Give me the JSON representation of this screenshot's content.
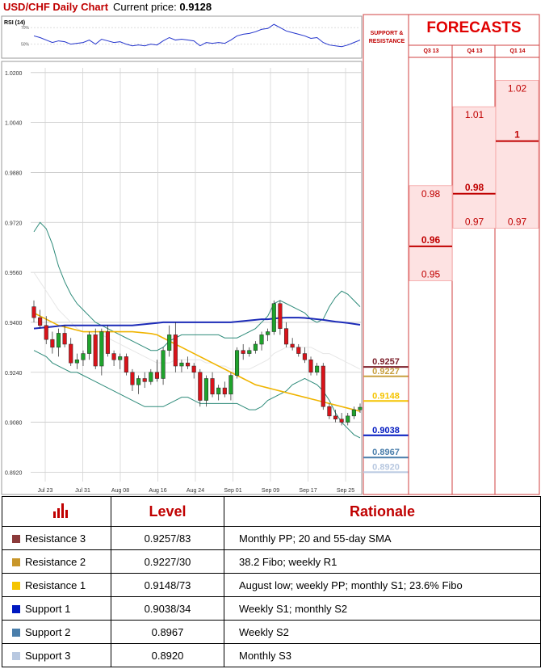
{
  "header": {
    "title": "USD/CHF Daily Chart",
    "current_label": "Current price:",
    "current_value": "0.9128"
  },
  "rsi": {
    "label": "RSI (14)",
    "levels": [
      "70%",
      "50%"
    ]
  },
  "forecast_panel": {
    "title": "FORECASTS",
    "sr_header": "SUPPORT & RESISTANCE",
    "quarters": [
      "Q3 13",
      "Q4 13",
      "Q1 14"
    ]
  },
  "chart_data": {
    "type": "candlestick",
    "y_ticks": [
      "1.0200",
      "1.0040",
      "0.9880",
      "0.9720",
      "0.9560",
      "0.9400",
      "0.9240",
      "0.9080",
      "0.8920"
    ],
    "ylim": [
      0.889,
      1.0215
    ],
    "x_labels": [
      "Jul 23",
      "Jul 31",
      "Aug 08",
      "Aug 16",
      "Aug 24",
      "Sep 01",
      "Sep 09",
      "Sep 17",
      "Sep 25"
    ],
    "candles": [
      [
        0.945,
        0.947,
        0.94,
        0.9415
      ],
      [
        0.9415,
        0.944,
        0.938,
        0.939
      ],
      [
        0.939,
        0.942,
        0.933,
        0.9345
      ],
      [
        0.9345,
        0.937,
        0.93,
        0.932
      ],
      [
        0.932,
        0.938,
        0.929,
        0.9365
      ],
      [
        0.9365,
        0.939,
        0.932,
        0.933
      ],
      [
        0.933,
        0.935,
        0.926,
        0.927
      ],
      [
        0.927,
        0.93,
        0.925,
        0.928
      ],
      [
        0.928,
        0.931,
        0.926,
        0.93
      ],
      [
        0.93,
        0.937,
        0.928,
        0.936
      ],
      [
        0.936,
        0.938,
        0.925,
        0.926
      ],
      [
        0.926,
        0.938,
        0.923,
        0.937
      ],
      [
        0.937,
        0.939,
        0.929,
        0.93
      ],
      [
        0.93,
        0.931,
        0.926,
        0.928
      ],
      [
        0.928,
        0.93,
        0.925,
        0.929
      ],
      [
        0.929,
        0.93,
        0.923,
        0.924
      ],
      [
        0.924,
        0.925,
        0.918,
        0.92
      ],
      [
        0.92,
        0.923,
        0.917,
        0.922
      ],
      [
        0.922,
        0.924,
        0.919,
        0.921
      ],
      [
        0.921,
        0.925,
        0.92,
        0.924
      ],
      [
        0.924,
        0.928,
        0.921,
        0.922
      ],
      [
        0.922,
        0.932,
        0.92,
        0.931
      ],
      [
        0.931,
        0.939,
        0.929,
        0.936
      ],
      [
        0.936,
        0.94,
        0.924,
        0.926
      ],
      [
        0.926,
        0.928,
        0.924,
        0.927
      ],
      [
        0.927,
        0.929,
        0.925,
        0.926
      ],
      [
        0.926,
        0.927,
        0.922,
        0.924
      ],
      [
        0.924,
        0.925,
        0.913,
        0.915
      ],
      [
        0.915,
        0.923,
        0.913,
        0.922
      ],
      [
        0.922,
        0.924,
        0.916,
        0.917
      ],
      [
        0.917,
        0.92,
        0.915,
        0.919
      ],
      [
        0.919,
        0.921,
        0.916,
        0.917
      ],
      [
        0.917,
        0.924,
        0.915,
        0.923
      ],
      [
        0.923,
        0.932,
        0.922,
        0.931
      ],
      [
        0.931,
        0.933,
        0.928,
        0.93
      ],
      [
        0.93,
        0.932,
        0.929,
        0.931
      ],
      [
        0.931,
        0.934,
        0.93,
        0.933
      ],
      [
        0.933,
        0.937,
        0.931,
        0.936
      ],
      [
        0.936,
        0.938,
        0.934,
        0.937
      ],
      [
        0.937,
        0.947,
        0.936,
        0.946
      ],
      [
        0.946,
        0.947,
        0.936,
        0.938
      ],
      [
        0.938,
        0.94,
        0.932,
        0.933
      ],
      [
        0.933,
        0.935,
        0.931,
        0.932
      ],
      [
        0.932,
        0.933,
        0.929,
        0.93
      ],
      [
        0.93,
        0.932,
        0.927,
        0.928
      ],
      [
        0.928,
        0.929,
        0.923,
        0.924
      ],
      [
        0.924,
        0.927,
        0.923,
        0.926
      ],
      [
        0.926,
        0.927,
        0.912,
        0.913
      ],
      [
        0.913,
        0.914,
        0.909,
        0.91
      ],
      [
        0.91,
        0.912,
        0.908,
        0.909
      ],
      [
        0.909,
        0.911,
        0.907,
        0.908
      ],
      [
        0.908,
        0.911,
        0.907,
        0.91
      ],
      [
        0.91,
        0.913,
        0.909,
        0.912
      ],
      [
        0.912,
        0.914,
        0.911,
        0.9128
      ]
    ],
    "bands_upper": [
      0.969,
      0.972,
      0.97,
      0.965,
      0.958,
      0.953,
      0.949,
      0.946,
      0.944,
      0.942,
      0.94,
      0.939,
      0.938,
      0.937,
      0.936,
      0.935,
      0.934,
      0.933,
      0.932,
      0.931,
      0.931,
      0.932,
      0.934,
      0.935,
      0.936,
      0.936,
      0.936,
      0.936,
      0.936,
      0.936,
      0.936,
      0.935,
      0.935,
      0.935,
      0.936,
      0.937,
      0.938,
      0.94,
      0.942,
      0.946,
      0.947,
      0.946,
      0.945,
      0.944,
      0.943,
      0.941,
      0.94,
      0.941,
      0.945,
      0.948,
      0.95,
      0.949,
      0.947,
      0.945
    ],
    "bands_lower": [
      0.931,
      0.93,
      0.929,
      0.927,
      0.926,
      0.925,
      0.924,
      0.924,
      0.923,
      0.922,
      0.921,
      0.92,
      0.919,
      0.918,
      0.917,
      0.916,
      0.915,
      0.914,
      0.913,
      0.913,
      0.913,
      0.913,
      0.914,
      0.915,
      0.916,
      0.916,
      0.915,
      0.914,
      0.914,
      0.914,
      0.914,
      0.914,
      0.914,
      0.914,
      0.913,
      0.912,
      0.912,
      0.913,
      0.915,
      0.916,
      0.917,
      0.918,
      0.92,
      0.921,
      0.922,
      0.921,
      0.92,
      0.918,
      0.915,
      0.911,
      0.908,
      0.906,
      0.904,
      0.903
    ],
    "sma_20": [
      0.956,
      0.953,
      0.95,
      0.947,
      0.944,
      0.942,
      0.94,
      0.938,
      0.937,
      0.937,
      0.936,
      0.936,
      0.935,
      0.934,
      0.933,
      0.932,
      0.931,
      0.93,
      0.929,
      0.928,
      0.927,
      0.927,
      0.927,
      0.928,
      0.928,
      0.928,
      0.928,
      0.928,
      0.927,
      0.927,
      0.926,
      0.926,
      0.925,
      0.925,
      0.925,
      0.925,
      0.926,
      0.927,
      0.928,
      0.93,
      0.931,
      0.932,
      0.932,
      0.932,
      0.932,
      0.932,
      0.931,
      0.93,
      0.93,
      0.929,
      0.928,
      0.927,
      0.926,
      0.925
    ],
    "sma_55": [
      0.943,
      0.942,
      0.941,
      0.94,
      0.939,
      0.9385,
      0.938,
      0.9375,
      0.937,
      0.937,
      0.937,
      0.937,
      0.937,
      0.937,
      0.937,
      0.937,
      0.937,
      0.9368,
      0.9366,
      0.9364,
      0.936,
      0.935,
      0.934,
      0.933,
      0.932,
      0.931,
      0.93,
      0.929,
      0.928,
      0.927,
      0.926,
      0.925,
      0.924,
      0.923,
      0.922,
      0.921,
      0.92,
      0.9195,
      0.919,
      0.9185,
      0.918,
      0.9175,
      0.917,
      0.9165,
      0.916,
      0.9155,
      0.915,
      0.9145,
      0.914,
      0.9135,
      0.913,
      0.9125,
      0.912,
      0.9115
    ],
    "sma_100": [
      0.938,
      0.9382,
      0.9384,
      0.9386,
      0.9388,
      0.939,
      0.939,
      0.939,
      0.939,
      0.939,
      0.939,
      0.939,
      0.939,
      0.939,
      0.939,
      0.939,
      0.939,
      0.9392,
      0.9394,
      0.9396,
      0.9398,
      0.94,
      0.94,
      0.94,
      0.94,
      0.94,
      0.94,
      0.94,
      0.94,
      0.94,
      0.94,
      0.94,
      0.94,
      0.9402,
      0.9404,
      0.9406,
      0.9408,
      0.941,
      0.941,
      0.9412,
      0.9414,
      0.9415,
      0.9415,
      0.9415,
      0.9414,
      0.9412,
      0.941,
      0.9408,
      0.9405,
      0.9402,
      0.94,
      0.9398,
      0.9395,
      0.9392
    ],
    "rsi_values": [
      60,
      58,
      55,
      52,
      54,
      53,
      50,
      51,
      52,
      55,
      50,
      56,
      54,
      52,
      53,
      50,
      48,
      49,
      48,
      50,
      49,
      54,
      58,
      55,
      56,
      55,
      54,
      48,
      52,
      51,
      52,
      51,
      55,
      60,
      62,
      63,
      65,
      68,
      69,
      74,
      70,
      66,
      64,
      62,
      60,
      57,
      58,
      52,
      49,
      48,
      47,
      49,
      52,
      55
    ],
    "levels": [
      {
        "value": 0.9257,
        "label": "0.9257",
        "color": "#7b1f2a"
      },
      {
        "value": 0.9227,
        "label": "0.9227",
        "color": "#c8a040"
      },
      {
        "value": 0.9148,
        "label": "0.9148",
        "color": "#f5c400"
      },
      {
        "value": 0.9038,
        "label": "0.9038",
        "color": "#0018c0"
      },
      {
        "value": 0.8967,
        "label": "0.8967",
        "color": "#4a7eab"
      },
      {
        "value": 0.892,
        "label": "0.8920",
        "color": "#b8c8e0"
      }
    ],
    "forecasts": [
      {
        "quarter": "Q3 13",
        "high": 0.98,
        "high_label": "0.98",
        "mid": 0.96,
        "mid_label": "0.96",
        "low": 0.95,
        "low_label": "0.95"
      },
      {
        "quarter": "Q4 13",
        "high": 1.01,
        "high_label": "1.01",
        "mid": 0.98,
        "mid_label": "0.98",
        "low": 0.97,
        "low_label": "0.97"
      },
      {
        "quarter": "Q1 14",
        "high": 1.02,
        "high_label": "1.02",
        "mid": 1.0,
        "mid_label": "1",
        "low": 0.97,
        "low_label": "0.97"
      }
    ]
  },
  "table": {
    "headers": [
      "",
      "Level",
      "Rationale"
    ],
    "rows": [
      {
        "name": "Resistance 3",
        "level": "0.9257/83",
        "rationale": "Monthly PP; 20 and 55-day SMA",
        "color": "#8b3a3a"
      },
      {
        "name": "Resistance 2",
        "level": "0.9227/30",
        "rationale": "38.2 Fibo; weekly R1",
        "color": "#c8962a"
      },
      {
        "name": "Resistance 1",
        "level": "0.9148/73",
        "rationale": "August low; weekly PP; monthly S1; 23.6% Fibo",
        "color": "#f5c400"
      },
      {
        "name": "Support 1",
        "level": "0.9038/34",
        "rationale": "Weekly S1; monthly S2",
        "color": "#0018c0"
      },
      {
        "name": "Support 2",
        "level": "0.8967",
        "rationale": "Weekly S2",
        "color": "#4a7eab"
      },
      {
        "name": "Support 3",
        "level": "0.8920",
        "rationale": "Monthly S3",
        "color": "#b8c8e0"
      }
    ]
  }
}
